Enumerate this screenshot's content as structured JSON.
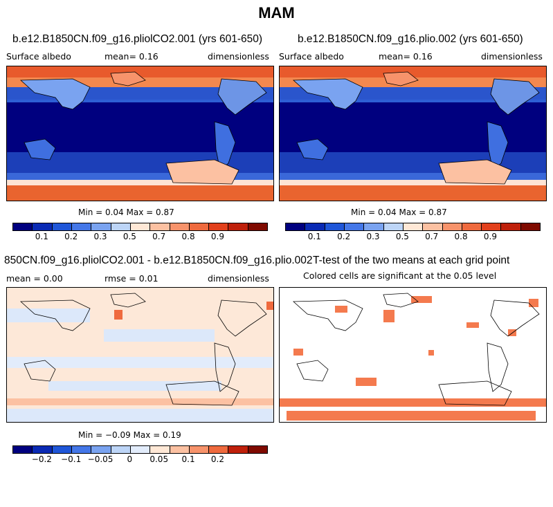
{
  "title": "MAM",
  "panels": [
    {
      "title": "b.e12.B1850CN.f09_g16.pliolCO2.001 (yrs 601-650)",
      "left_label": "Surface albedo",
      "center_label": "mean=    0.16",
      "right_label": "dimensionless",
      "minmax": "Min =    0.04 Max =    0.87"
    },
    {
      "title": "b.e12.B1850CN.f09_g16.plio.002 (yrs 601-650)",
      "left_label": "Surface albedo",
      "center_label": "mean=    0.16",
      "right_label": "dimensionless",
      "minmax": "Min =    0.04 Max =    0.87"
    },
    {
      "title": "850CN.f09_g16.pliolCO2.001 - b.e12.B1850CN.f09_g16.plio.002",
      "left_label": "mean =    0.00",
      "center_label": "rmse =    0.01",
      "right_label": "dimensionless",
      "minmax": "Min =  −0.09 Max =    0.19"
    },
    {
      "title": "T-test of the two means at each grid point",
      "subtitle": "Colored cells are significant at the 0.05 level"
    }
  ],
  "colorbars": {
    "albedo": {
      "colors": [
        "#00007f",
        "#0a2ab4",
        "#1f56d8",
        "#4477e8",
        "#7aa3f0",
        "#bdd5f7",
        "#ffe8d6",
        "#fcc1a2",
        "#f7936b",
        "#ef6a3e",
        "#e2401c",
        "#bf200b",
        "#7f0a00"
      ],
      "tick_labels": [
        "0.1",
        "0.2",
        "0.3",
        "0.5",
        "0.7",
        "0.8",
        "0.9"
      ]
    },
    "difference": {
      "colors": [
        "#00007f",
        "#0a2ab4",
        "#1f56d8",
        "#4477e8",
        "#7aa3f0",
        "#bdd5f7",
        "#e2ecfb",
        "#ffe8d6",
        "#fcc1a2",
        "#f7936b",
        "#ef6a3e",
        "#bf200b",
        "#7f0a00"
      ],
      "tick_labels": [
        "−0.2",
        "−0.1",
        "−0.05",
        "0",
        "0.05",
        "0.1",
        "0.2"
      ]
    }
  },
  "significance_color": "#f47a4e"
}
